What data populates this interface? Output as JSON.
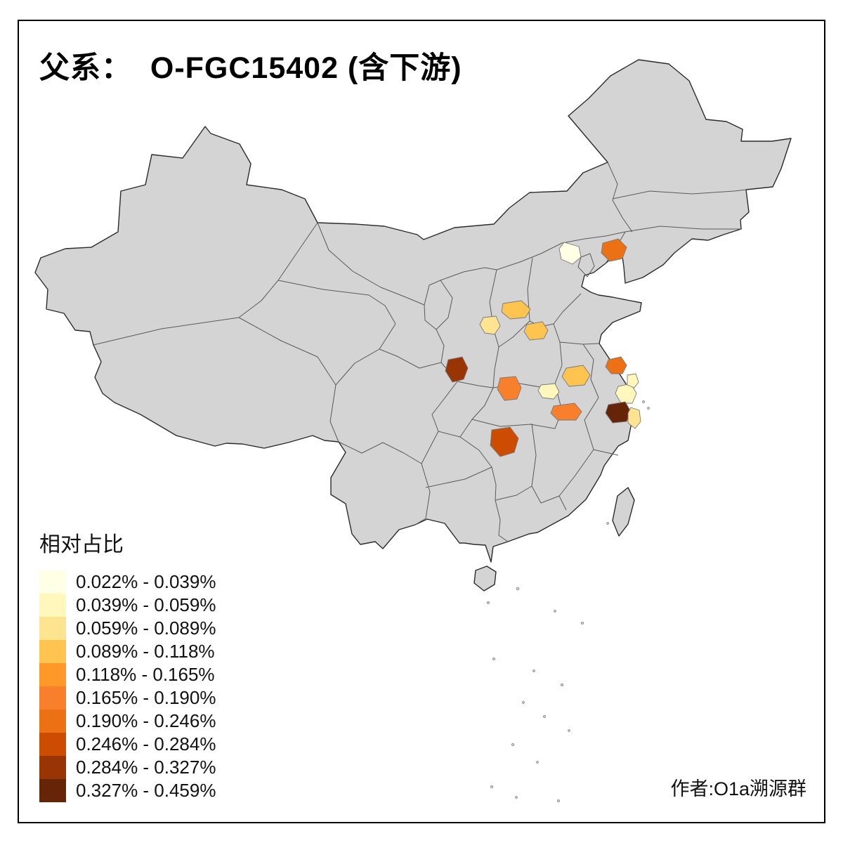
{
  "title": {
    "text": "父系：  O-FGC15402 (含下游)"
  },
  "legend": {
    "title": "相对占比",
    "bins": [
      {
        "label": "0.022% - 0.039%",
        "color": "#FFFFE5"
      },
      {
        "label": "0.039% - 0.059%",
        "color": "#FFF7BC"
      },
      {
        "label": "0.059% - 0.089%",
        "color": "#FEE391"
      },
      {
        "label": "0.089% - 0.118%",
        "color": "#FEC44F"
      },
      {
        "label": "0.118% - 0.165%",
        "color": "#FE9929"
      },
      {
        "label": "0.165% - 0.190%",
        "color": "#F87F2C"
      },
      {
        "label": "0.190% - 0.246%",
        "color": "#EC7014"
      },
      {
        "label": "0.246% - 0.284%",
        "color": "#CC4C02"
      },
      {
        "label": "0.284% - 0.327%",
        "color": "#993404"
      },
      {
        "label": "0.327% - 0.459%",
        "color": "#662506"
      }
    ]
  },
  "credit": {
    "text": "作者:O1a溯源群"
  },
  "map": {
    "base_fill": "#D4D4D4",
    "country_stroke": "#2B2B2B",
    "province_stroke": "#5A5A5A",
    "regions": [
      {
        "id": "r1",
        "color": "#EC7014",
        "bin": "0.190% - 0.246%"
      },
      {
        "id": "r2",
        "color": "#FFFFE5",
        "bin": "0.022% - 0.039%"
      },
      {
        "id": "r3",
        "color": "#FEC44F",
        "bin": "0.089% - 0.118%"
      },
      {
        "id": "r4",
        "color": "#FEE391",
        "bin": "0.059% - 0.089%"
      },
      {
        "id": "r5",
        "color": "#FEC44F",
        "bin": "0.089% - 0.118%"
      },
      {
        "id": "r6",
        "color": "#993404",
        "bin": "0.284% - 0.327%"
      },
      {
        "id": "r7",
        "color": "#F87F2C",
        "bin": "0.165% - 0.190%"
      },
      {
        "id": "r8",
        "color": "#FEC44F",
        "bin": "0.089% - 0.118%"
      },
      {
        "id": "r9",
        "color": "#EC7014",
        "bin": "0.190% - 0.246%"
      },
      {
        "id": "r10",
        "color": "#FFF7BC",
        "bin": "0.039% - 0.059%"
      },
      {
        "id": "r11",
        "color": "#F87F2C",
        "bin": "0.165% - 0.190%"
      },
      {
        "id": "r12",
        "color": "#FFF7BC",
        "bin": "0.039% - 0.059%"
      },
      {
        "id": "r13",
        "color": "#662506",
        "bin": "0.327% - 0.459%"
      },
      {
        "id": "r14",
        "color": "#FEE391",
        "bin": "0.059% - 0.089%"
      },
      {
        "id": "r15",
        "color": "#CC4C02",
        "bin": "0.246% - 0.284%"
      },
      {
        "id": "r16",
        "color": "#FFF7BC",
        "bin": "0.039% - 0.059%"
      }
    ]
  }
}
